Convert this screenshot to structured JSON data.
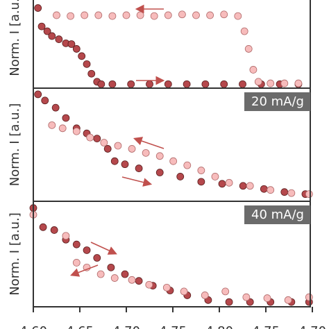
{
  "chart_data": [
    {
      "type": "scatter",
      "y_label": "Norm. I [a.u.]",
      "ylim": [
        -0.05,
        1.05
      ],
      "series": [
        {
          "color": "#b5484c",
          "x": [
            0.1,
            0.18,
            0.3,
            0.4,
            0.55,
            0.7,
            0.82,
            0.93,
            1.04,
            1.15,
            1.25,
            1.37,
            1.46,
            1.7,
            2.1,
            2.5,
            2.9,
            3.3,
            3.7,
            4.1,
            4.5,
            4.9,
            5.3,
            5.7
          ],
          "values": [
            0.95,
            0.72,
            0.66,
            0.6,
            0.56,
            0.51,
            0.5,
            0.44,
            0.35,
            0.25,
            0.13,
            0.03,
            0,
            0,
            0,
            0,
            0,
            0,
            0,
            0,
            0,
            0,
            0,
            0
          ]
        },
        {
          "color": "#f7bcbc",
          "x": [
            0.5,
            0.8,
            1.1,
            1.4,
            1.7,
            2.0,
            2.3,
            2.6,
            2.9,
            3.2,
            3.5,
            3.8,
            4.1,
            4.4,
            4.54,
            4.63,
            4.73,
            4.84,
            5.1,
            5.4,
            5.7
          ],
          "values": [
            0.86,
            0.85,
            0.86,
            0.86,
            0.85,
            0.86,
            0.86,
            0.85,
            0.86,
            0.87,
            0.86,
            0.86,
            0.87,
            0.85,
            0.66,
            0.44,
            0.18,
            0.03,
            0.01,
            0.01,
            0.01
          ]
        }
      ]
    },
    {
      "type": "scatter",
      "y_label": "Norm. I [a.u.]",
      "panel_label": "20 mA/g",
      "ylim": [
        -0.05,
        1.05
      ],
      "series": [
        {
          "color": "#b5484c",
          "x": [
            0.1,
            0.25,
            0.48,
            0.7,
            0.93,
            1.15,
            1.37,
            1.6,
            1.75,
            1.97,
            2.27,
            2.72,
            3.16,
            3.61,
            4.06,
            4.51,
            4.96,
            5.4,
            5.85
          ],
          "values": [
            0.99,
            0.93,
            0.86,
            0.76,
            0.66,
            0.61,
            0.56,
            0.46,
            0.34,
            0.31,
            0.27,
            0.23,
            0.19,
            0.14,
            0.12,
            0.1,
            0.07,
            0.04,
            0.02
          ]
        },
        {
          "color": "#f7bcbc",
          "x": [
            0.4,
            0.63,
            0.93,
            1.22,
            1.52,
            1.82,
            2.12,
            2.42,
            2.72,
            3.01,
            3.31,
            3.61,
            3.91,
            4.21,
            4.66,
            5.1,
            5.55,
            5.93
          ],
          "values": [
            0.69,
            0.66,
            0.63,
            0.57,
            0.52,
            0.49,
            0.46,
            0.42,
            0.39,
            0.34,
            0.3,
            0.25,
            0.19,
            0.13,
            0.1,
            0.06,
            0.03,
            0.02
          ]
        }
      ]
    },
    {
      "type": "scatter",
      "y_label": "Norm. I [a.u.]",
      "panel_label": "40 mA/g",
      "ylim": [
        -0.05,
        1.05
      ],
      "xlim": [
        0,
        6
      ],
      "xticks": [
        {
          "value": 0,
          "label": "4.60"
        },
        {
          "value": 1,
          "label": "4.65"
        },
        {
          "value": 2,
          "label": "4.70"
        },
        {
          "value": 3,
          "label": "4.75"
        },
        {
          "value": 4,
          "label": "4.80"
        },
        {
          "value": 5,
          "label": "4.75"
        },
        {
          "value": 6,
          "label": "4.70"
        }
      ],
      "series": [
        {
          "color": "#b5484c",
          "x": [
            0.0,
            0.21,
            0.45,
            0.7,
            0.93,
            1.15,
            1.37,
            1.67,
            1.97,
            2.27,
            2.57,
            2.94,
            3.31,
            3.76,
            4.21,
            4.66,
            5.1,
            5.55,
            5.93
          ],
          "values": [
            0.98,
            0.78,
            0.75,
            0.65,
            0.6,
            0.54,
            0.46,
            0.36,
            0.29,
            0.22,
            0.17,
            0.12,
            0.07,
            0.02,
            0,
            0,
            0,
            0,
            0
          ]
        },
        {
          "color": "#f7bcbc",
          "x": [
            0.0,
            0.7,
            0.93,
            1.15,
            1.45,
            1.75,
            2.12,
            2.49,
            2.87,
            3.24,
            3.69,
            4.13,
            4.58,
            5.03,
            5.48,
            5.93
          ],
          "values": [
            0.91,
            0.69,
            0.41,
            0.36,
            0.29,
            0.25,
            0.23,
            0.18,
            0.15,
            0.11,
            0.07,
            0.11,
            0.05,
            0.04,
            0.02,
            0.05
          ]
        }
      ]
    }
  ]
}
